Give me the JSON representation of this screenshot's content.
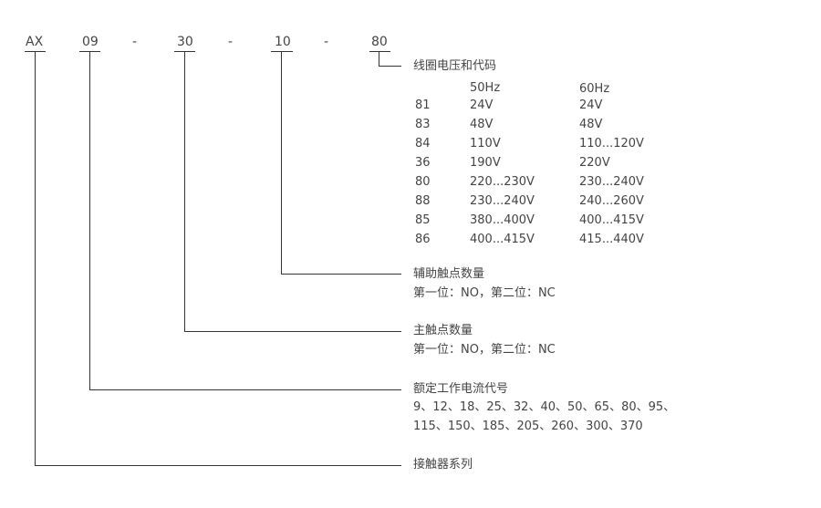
{
  "codes": [
    "AX",
    "09",
    "30",
    "10",
    "80"
  ],
  "separator": "-",
  "coil": {
    "title": "线圈电压和代码",
    "headers": [
      "50Hz",
      "60Hz"
    ],
    "rows": [
      [
        "81",
        "24V",
        "24V"
      ],
      [
        "83",
        "48V",
        "48V"
      ],
      [
        "84",
        "110V",
        "110...120V"
      ],
      [
        "36",
        "190V",
        "220V"
      ],
      [
        "80",
        "220...230V",
        "230...240V"
      ],
      [
        "88",
        "230...240V",
        "240...260V"
      ],
      [
        "85",
        "380...400V",
        "400...415V"
      ],
      [
        "86",
        "400...415V",
        "415...440V"
      ]
    ]
  },
  "aux": {
    "title": "辅助触点数量",
    "desc": "第一位：NO，第二位：NC"
  },
  "main": {
    "title": "主触点数量",
    "desc": "第一位：NO，第二位：NC"
  },
  "current": {
    "title": "额定工作电流代号",
    "line1": "9、12、18、25、32、40、50、65、80、95、",
    "line2": "115、150、185、205、260、300、370"
  },
  "series": {
    "title": "接触器系列"
  }
}
